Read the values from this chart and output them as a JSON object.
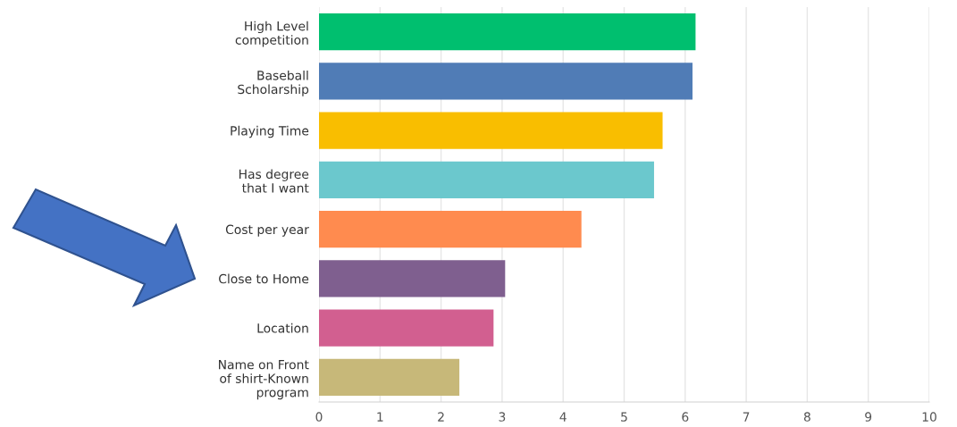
{
  "chart_data": {
    "type": "bar",
    "orientation": "horizontal",
    "categories": [
      "High Level\ncompetition",
      "Baseball\nScholarship",
      "Playing Time",
      "Has degree\nthat I want",
      "Cost per year",
      "Close to Home",
      "Location",
      "Name on Front\nof shirt-Known\nprogram"
    ],
    "values": [
      6.17,
      6.12,
      5.63,
      5.49,
      4.3,
      3.05,
      2.86,
      2.3
    ],
    "colors": [
      "#00bf6f",
      "#507cb6",
      "#f9be00",
      "#6bc8cd",
      "#ff8b4f",
      "#7f5f8f",
      "#d25f90",
      "#c7b879"
    ],
    "xlim": [
      0,
      10
    ],
    "xticks": [
      0,
      1,
      2,
      3,
      4,
      5,
      6,
      7,
      8,
      9,
      10
    ],
    "grid": "x"
  }
}
